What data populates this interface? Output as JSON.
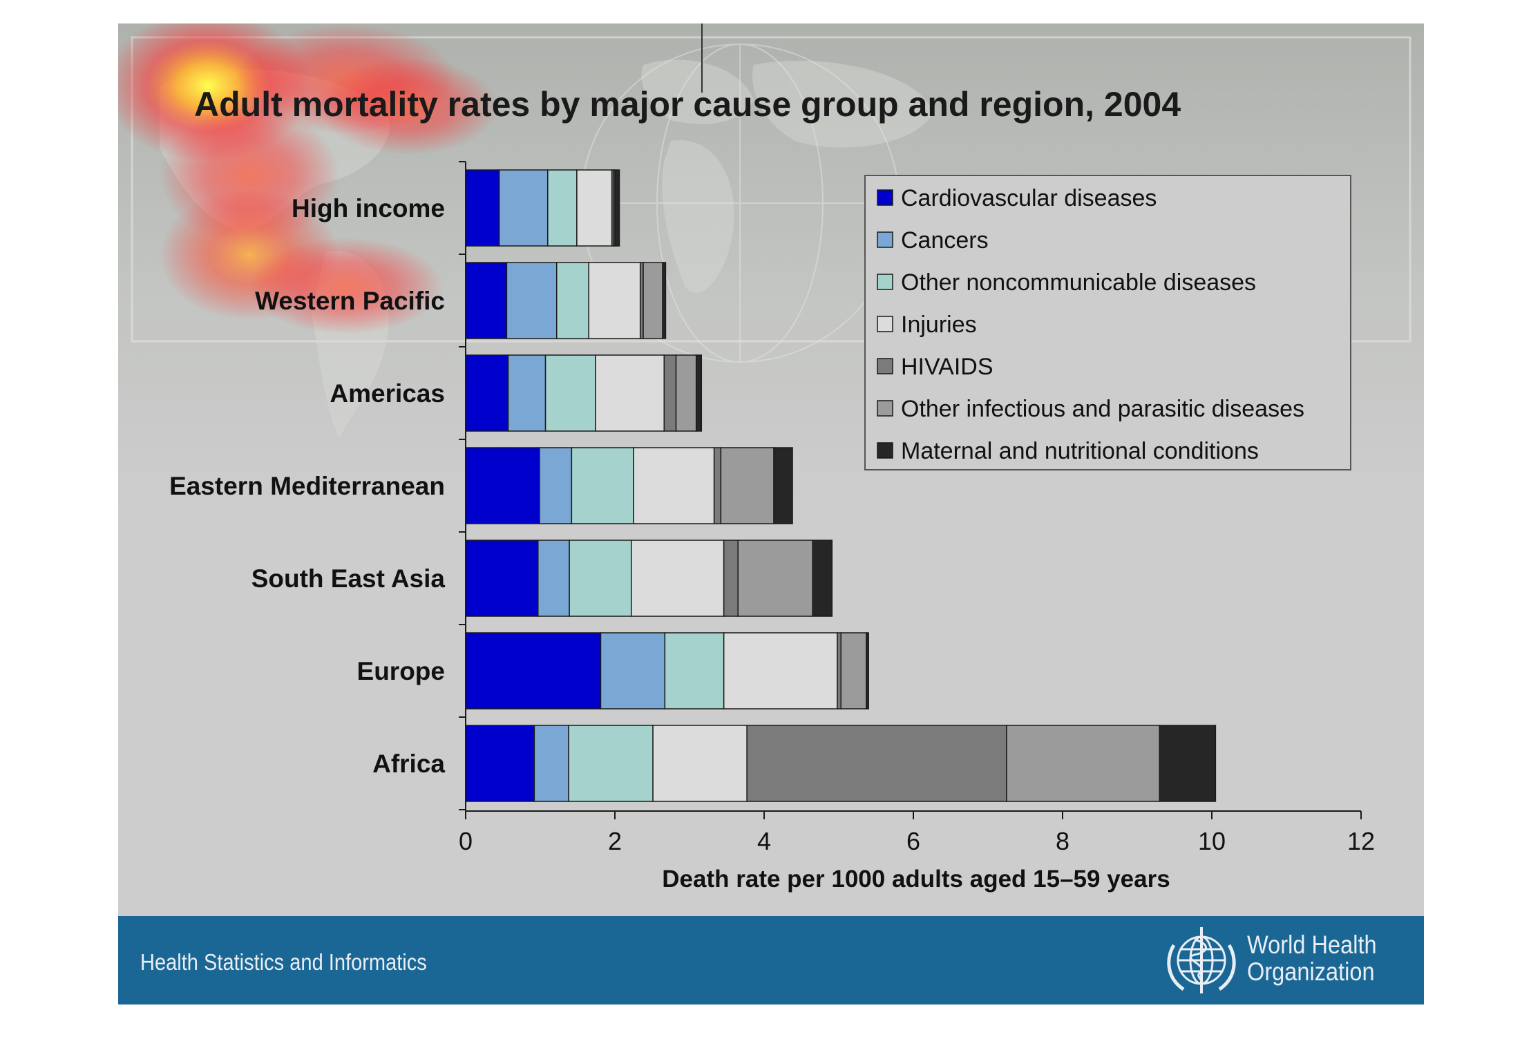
{
  "title": "Adult mortality rates by major cause group and region, 2004",
  "footer": {
    "department": "Health Statistics and Informatics",
    "org_line1": "World Health",
    "org_line2": "Organization"
  },
  "icons": [
    "who-emblem-icon"
  ],
  "chart_data": {
    "type": "bar",
    "orientation": "horizontal",
    "stacked": true,
    "categories": [
      "High income",
      "Western Pacific",
      "Americas",
      "Eastern Mediterranean",
      "South East Asia",
      "Europe",
      "Africa"
    ],
    "series": [
      {
        "name": "Cardiovascular diseases",
        "color": "#0000cc",
        "values": [
          0.45,
          0.55,
          0.57,
          0.99,
          0.97,
          1.81,
          0.92
        ]
      },
      {
        "name": "Cancers",
        "color": "#7aa7d3",
        "values": [
          0.65,
          0.67,
          0.5,
          0.43,
          0.42,
          0.86,
          0.46
        ]
      },
      {
        "name": "Other noncommunicable diseases",
        "color": "#a6d2cd",
        "values": [
          0.39,
          0.43,
          0.67,
          0.83,
          0.83,
          0.79,
          1.13
        ]
      },
      {
        "name": "Injuries",
        "color": "#dcdcdc",
        "values": [
          0.47,
          0.69,
          0.92,
          1.08,
          1.24,
          1.52,
          1.26
        ]
      },
      {
        "name": "HIVAIDS",
        "color": "#7b7b7b",
        "values": [
          0.02,
          0.04,
          0.16,
          0.09,
          0.19,
          0.05,
          3.48
        ]
      },
      {
        "name": "Other infectious and parasitic diseases",
        "color": "#9b9b9b",
        "values": [
          0.02,
          0.26,
          0.27,
          0.71,
          1.0,
          0.34,
          2.05
        ]
      },
      {
        "name": "Maternal and nutritional conditions",
        "color": "#262626",
        "values": [
          0.06,
          0.04,
          0.07,
          0.25,
          0.26,
          0.03,
          0.75
        ]
      }
    ],
    "xlabel": "Death rate per 1000 adults aged 15–59 years",
    "xlim": [
      0,
      12
    ],
    "xticks": [
      "0",
      "2",
      "4",
      "6",
      "8",
      "10",
      "12"
    ],
    "grid": false,
    "legend_position": "top-right"
  }
}
